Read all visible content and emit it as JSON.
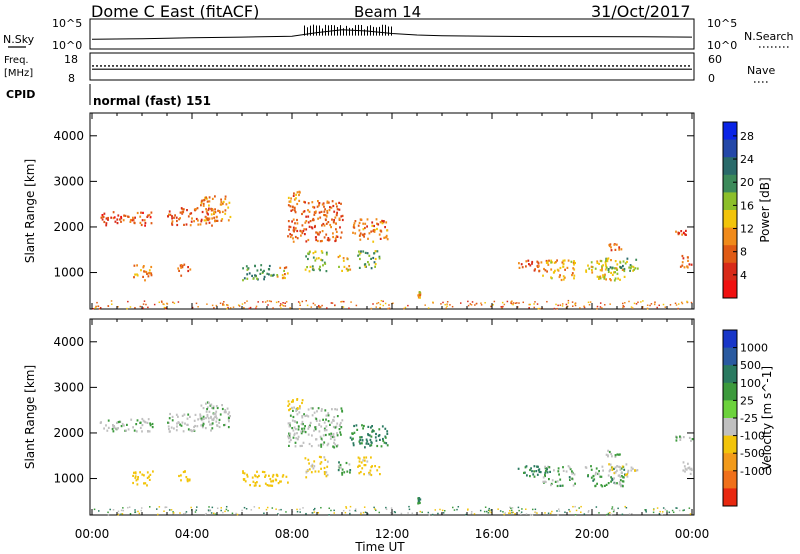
{
  "header": {
    "station": "Dome C East (fitACF)",
    "beam": "Beam 14",
    "date": "31/Oct/2017"
  },
  "top_panels": {
    "nsky_label": "N.Sky",
    "nsearch_label": "N.Search",
    "nsky_tick_top": "10^5",
    "nsky_tick_bottom": "10^0",
    "nsky_right_tick_top": "10^5",
    "nsky_right_tick_bottom": "10^0",
    "freq_label": "Freq.",
    "freq_unit": "[MHz]",
    "freq_tick_top": "18",
    "freq_tick_bottom": "8",
    "nave_label": "Nave",
    "nave_tick_top": "60",
    "nave_tick_bottom": "0",
    "cpid_label": "CPID",
    "cpid_value": "normal (fast) 151"
  },
  "axes": {
    "ylabel": "Slant Range [km]",
    "xlabel": "Time UT",
    "x_ticks": [
      "00:00",
      "04:00",
      "08:00",
      "12:00",
      "16:00",
      "20:00",
      "00:00"
    ],
    "y_ticks": [
      "1000",
      "2000",
      "3000",
      "4000"
    ]
  },
  "colorbars": {
    "power": {
      "label": "Power [dB]",
      "ticks": [
        "4",
        "8",
        "12",
        "16",
        "20",
        "24",
        "28"
      ],
      "colors": [
        "#0a24e6",
        "#2448a8",
        "#2a6a6a",
        "#3c8a5a",
        "#8cbf2a",
        "#f2c40a",
        "#f08a1a",
        "#e05a14",
        "#d82a18",
        "#f01010"
      ]
    },
    "velocity": {
      "label": "Velocity [m s^-1]",
      "ticks": [
        "1000",
        "500",
        "100",
        "25",
        "-25",
        "-100",
        "-500",
        "-1000"
      ],
      "colors": [
        "#1836c8",
        "#2a5aa0",
        "#2a7a60",
        "#3c9a3c",
        "#6cd23c",
        "#c0c0c0",
        "#f2c40a",
        "#f29a1a",
        "#f0701a",
        "#e82810"
      ]
    }
  },
  "chart_data": [
    {
      "type": "line",
      "title": "N.Sky / N.Search",
      "xlabel": "Time UT",
      "xlim": [
        0,
        24
      ],
      "y_scale": "log",
      "ylim_left": [
        1,
        100000
      ],
      "series": [
        {
          "name": "N.Sky",
          "x": [
            0,
            2,
            4,
            6,
            8,
            9,
            10,
            11,
            12,
            13,
            14,
            16,
            18,
            20,
            22,
            24
          ],
          "values": [
            30,
            40,
            60,
            80,
            120,
            600,
            2000,
            1200,
            400,
            200,
            150,
            120,
            100,
            100,
            90,
            80
          ]
        }
      ]
    },
    {
      "type": "line",
      "title": "Freq. / Nave",
      "ylim_left": [
        8,
        18
      ],
      "ylim_right": [
        0,
        60
      ],
      "series": [
        {
          "name": "Freq.",
          "x": [
            0,
            24
          ],
          "values": [
            12,
            12
          ]
        },
        {
          "name": "Nave",
          "x": [
            0,
            24
          ],
          "values": [
            33,
            33
          ]
        }
      ]
    },
    {
      "type": "heatmap",
      "title": "Power [dB]",
      "xlabel": "Time UT",
      "ylabel": "Slant Range [km]",
      "xlim": [
        0,
        24
      ],
      "ylim": [
        200,
        4500
      ],
      "clim": [
        0,
        30
      ],
      "patches": [
        {
          "t": [
            0.3,
            2.4
          ],
          "r": [
            2050,
            2350
          ],
          "v": 6
        },
        {
          "t": [
            1.6,
            2.4
          ],
          "r": [
            850,
            1200
          ],
          "v": 10
        },
        {
          "t": [
            3.0,
            5.0
          ],
          "r": [
            2050,
            2450
          ],
          "v": 7
        },
        {
          "t": [
            4.3,
            5.5
          ],
          "r": [
            2150,
            2700
          ],
          "v": 10
        },
        {
          "t": [
            3.4,
            3.9
          ],
          "r": [
            950,
            1200
          ],
          "v": 8
        },
        {
          "t": [
            6.0,
            7.3
          ],
          "r": [
            850,
            1200
          ],
          "v": 20
        },
        {
          "t": [
            7.3,
            7.8
          ],
          "r": [
            900,
            1150
          ],
          "v": 12
        },
        {
          "t": [
            7.8,
            10.0
          ],
          "r": [
            1700,
            2600
          ],
          "v": 8
        },
        {
          "t": [
            7.8,
            8.4
          ],
          "r": [
            2500,
            2800
          ],
          "v": 9
        },
        {
          "t": [
            8.5,
            9.4
          ],
          "r": [
            1050,
            1500
          ],
          "v": 16
        },
        {
          "t": [
            9.8,
            10.3
          ],
          "r": [
            1050,
            1400
          ],
          "v": 14
        },
        {
          "t": [
            10.6,
            11.5
          ],
          "r": [
            1100,
            1500
          ],
          "v": 18
        },
        {
          "t": [
            10.3,
            11.8
          ],
          "r": [
            1700,
            2200
          ],
          "v": 9
        },
        {
          "t": [
            13.0,
            13.1
          ],
          "r": [
            450,
            600
          ],
          "v": 12
        },
        {
          "t": [
            17.0,
            18.2
          ],
          "r": [
            1050,
            1300
          ],
          "v": 7
        },
        {
          "t": [
            18.0,
            19.3
          ],
          "r": [
            850,
            1300
          ],
          "v": 12
        },
        {
          "t": [
            19.7,
            21.3
          ],
          "r": [
            850,
            1300
          ],
          "v": 14
        },
        {
          "t": [
            20.5,
            21.8
          ],
          "r": [
            1050,
            1350
          ],
          "v": 18
        },
        {
          "t": [
            20.5,
            21.2
          ],
          "r": [
            1500,
            1650
          ],
          "v": 8
        },
        {
          "t": [
            23.5,
            24.0
          ],
          "r": [
            1100,
            1400
          ],
          "v": 8
        },
        {
          "t": [
            23.3,
            24.0
          ],
          "r": [
            1850,
            1950
          ],
          "v": 6
        }
      ]
    },
    {
      "type": "heatmap",
      "title": "Velocity [m s^-1]",
      "xlabel": "Time UT",
      "ylabel": "Slant Range [km]",
      "xlim": [
        0,
        24
      ],
      "ylim": [
        200,
        4500
      ],
      "clim": [
        -1000,
        1000
      ],
      "patches": [
        {
          "t": [
            0.3,
            2.4
          ],
          "r": [
            2050,
            2350
          ],
          "v": 0
        },
        {
          "t": [
            1.6,
            2.4
          ],
          "r": [
            850,
            1200
          ],
          "v": -200
        },
        {
          "t": [
            3.0,
            5.0
          ],
          "r": [
            2050,
            2450
          ],
          "v": 0
        },
        {
          "t": [
            4.3,
            5.5
          ],
          "r": [
            2150,
            2700
          ],
          "v": 0
        },
        {
          "t": [
            3.4,
            3.9
          ],
          "r": [
            950,
            1200
          ],
          "v": -200
        },
        {
          "t": [
            6.0,
            7.3
          ],
          "r": [
            850,
            1200
          ],
          "v": -250
        },
        {
          "t": [
            7.3,
            7.8
          ],
          "r": [
            900,
            1150
          ],
          "v": -200
        },
        {
          "t": [
            7.8,
            10.0
          ],
          "r": [
            1700,
            2600
          ],
          "v": 0
        },
        {
          "t": [
            7.8,
            8.4
          ],
          "r": [
            2500,
            2800
          ],
          "v": -300
        },
        {
          "t": [
            8.5,
            9.4
          ],
          "r": [
            1050,
            1500
          ],
          "v": -120
        },
        {
          "t": [
            9.8,
            10.3
          ],
          "r": [
            1050,
            1400
          ],
          "v": 60
        },
        {
          "t": [
            10.6,
            11.5
          ],
          "r": [
            1100,
            1500
          ],
          "v": -150
        },
        {
          "t": [
            10.3,
            11.8
          ],
          "r": [
            1700,
            2200
          ],
          "v": 120
        },
        {
          "t": [
            13.0,
            13.1
          ],
          "r": [
            450,
            600
          ],
          "v": 120
        },
        {
          "t": [
            17.0,
            18.2
          ],
          "r": [
            1050,
            1300
          ],
          "v": 120
        },
        {
          "t": [
            18.0,
            19.3
          ],
          "r": [
            850,
            1300
          ],
          "v": 50
        },
        {
          "t": [
            19.7,
            21.3
          ],
          "r": [
            850,
            1300
          ],
          "v": 60
        },
        {
          "t": [
            20.5,
            21.8
          ],
          "r": [
            1050,
            1350
          ],
          "v": -60
        },
        {
          "t": [
            20.5,
            21.2
          ],
          "r": [
            1500,
            1650
          ],
          "v": 0
        },
        {
          "t": [
            23.5,
            24.0
          ],
          "r": [
            1100,
            1400
          ],
          "v": -60
        },
        {
          "t": [
            23.3,
            24.0
          ],
          "r": [
            1850,
            1950
          ],
          "v": 0
        }
      ]
    }
  ]
}
